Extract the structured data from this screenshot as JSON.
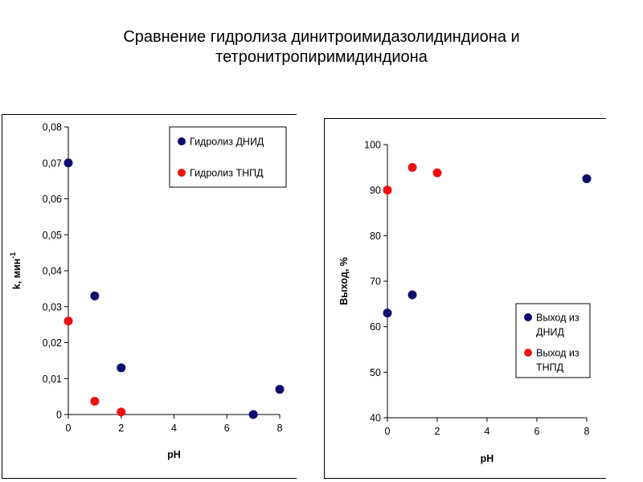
{
  "slide": {
    "title_line1": "Сравнение гидролиза динитроимидазолидиндиона и",
    "title_line2": "тетронитропиримидиндиона"
  },
  "chart_data": [
    {
      "type": "scatter",
      "xlabel": "pH",
      "ylabel": "k, мин",
      "ylabel_sup": "-1",
      "xlim": [
        0,
        8
      ],
      "ylim": [
        0,
        0.08
      ],
      "xticks": [
        "0",
        "2",
        "4",
        "6",
        "8"
      ],
      "yticks": [
        "0",
        "0,01",
        "0,02",
        "0,03",
        "0,04",
        "0,05",
        "0,06",
        "0,07",
        "0,08"
      ],
      "grid": false,
      "legend": "top-right",
      "series": [
        {
          "name": "Гидролиз ДНИД",
          "color": "#0b0b6e",
          "points": [
            [
              0,
              0.07
            ],
            [
              1,
              0.033
            ],
            [
              2,
              0.013
            ],
            [
              7,
              0.0
            ],
            [
              8,
              0.007
            ]
          ]
        },
        {
          "name": "Гидролиз ТНПД",
          "color": "#ee1111",
          "points": [
            [
              0,
              0.026
            ],
            [
              1,
              0.0037
            ],
            [
              2,
              0.0007
            ]
          ]
        }
      ]
    },
    {
      "type": "scatter",
      "xlabel": "pH",
      "ylabel": "Выход, %",
      "xlim": [
        0,
        8
      ],
      "ylim": [
        40,
        100
      ],
      "xticks": [
        "0",
        "2",
        "4",
        "6",
        "8"
      ],
      "yticks": [
        "40",
        "50",
        "60",
        "70",
        "80",
        "90",
        "100"
      ],
      "grid": false,
      "legend": "bottom-right",
      "series": [
        {
          "name": "Выход из ДНИД",
          "color": "#0b0b6e",
          "points": [
            [
              0,
              63
            ],
            [
              1,
              67
            ],
            [
              8,
              92.5
            ]
          ]
        },
        {
          "name": "Выход из ТНПД",
          "color": "#ee1111",
          "points": [
            [
              0,
              90
            ],
            [
              1,
              95
            ],
            [
              2,
              93.8
            ]
          ]
        }
      ]
    }
  ]
}
